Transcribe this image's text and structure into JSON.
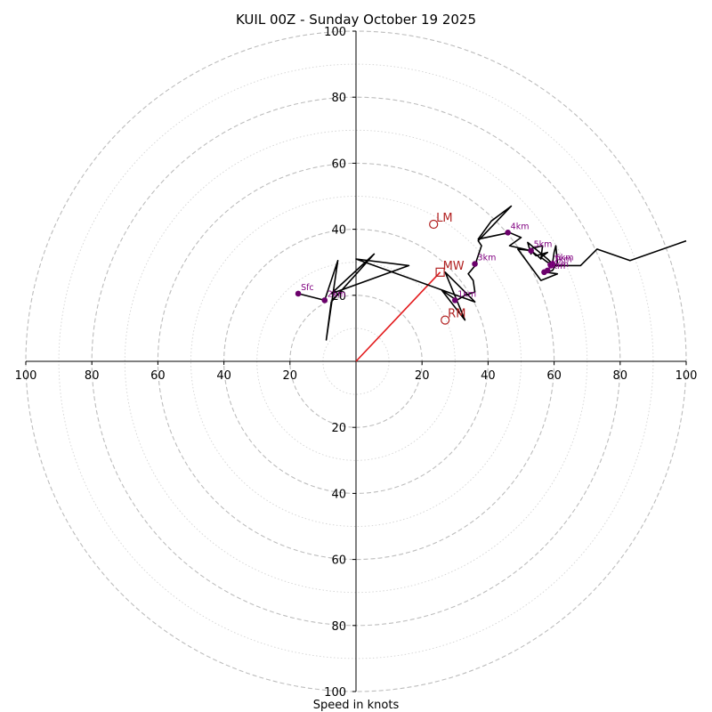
{
  "chart_data": {
    "type": "hodograph",
    "title": "KUIL 00Z - Sunday October 19 2025",
    "xlabel": "Speed in knots",
    "axis_range": [
      -100,
      100
    ],
    "rings_major": [
      20,
      40,
      60,
      80,
      100
    ],
    "rings_minor": [
      10,
      30,
      50,
      70,
      90
    ],
    "x_ticks": [
      -100,
      -80,
      -60,
      -40,
      -20,
      20,
      40,
      60,
      80,
      100
    ],
    "x_tick_labels": [
      "100",
      "80",
      "60",
      "40",
      "20",
      "20",
      "40",
      "60",
      "80",
      "100"
    ],
    "y_ticks": [
      100,
      80,
      60,
      40,
      20,
      -20,
      -40,
      -60,
      -80,
      -100
    ],
    "y_tick_labels": [
      "100",
      "80",
      "60",
      "40",
      "20",
      "20",
      "40",
      "60",
      "80",
      "100"
    ],
    "wind_trace": [
      [
        -17.5,
        20.5
      ],
      [
        -9.5,
        18.5
      ],
      [
        -5.5,
        30.5
      ],
      [
        -9,
        6.5
      ],
      [
        -7.5,
        18
      ],
      [
        5.5,
        32.5
      ],
      [
        -7.5,
        20.5
      ],
      [
        16,
        29
      ],
      [
        0,
        31
      ],
      [
        36,
        18
      ],
      [
        27,
        27
      ],
      [
        33,
        12.5
      ],
      [
        26,
        21.5
      ],
      [
        30.5,
        18.5
      ],
      [
        33,
        20
      ],
      [
        36,
        21
      ],
      [
        35.5,
        24.5
      ],
      [
        34,
        26.5
      ],
      [
        36.5,
        29.5
      ],
      [
        36.5,
        30.5
      ],
      [
        38,
        35
      ],
      [
        37,
        36.5
      ],
      [
        47,
        47
      ],
      [
        41,
        42.5
      ],
      [
        37,
        37
      ],
      [
        46.5,
        39
      ],
      [
        50,
        37.5
      ],
      [
        46.5,
        35
      ],
      [
        53,
        33.5
      ],
      [
        55,
        32
      ],
      [
        56,
        31
      ],
      [
        56.5,
        35
      ],
      [
        52.5,
        34
      ],
      [
        54.5,
        32
      ],
      [
        58,
        33
      ],
      [
        56,
        31.5
      ],
      [
        58,
        30
      ],
      [
        59.5,
        29.5
      ],
      [
        60,
        33
      ],
      [
        60.5,
        35
      ],
      [
        61,
        30
      ],
      [
        59.5,
        27.5
      ],
      [
        57.5,
        27
      ],
      [
        61,
        26.5
      ],
      [
        56,
        24.5
      ],
      [
        49,
        34
      ],
      [
        53.5,
        33.5
      ],
      [
        53,
        32.5
      ],
      [
        52,
        36
      ],
      [
        58,
        31
      ],
      [
        60,
        29
      ],
      [
        68,
        29
      ],
      [
        73,
        34
      ],
      [
        83,
        30.5
      ],
      [
        100,
        36.5
      ]
    ],
    "height_markers": [
      {
        "label": "Sfc",
        "u": -17.5,
        "v": 20.5
      },
      {
        "label": "2km",
        "u": -9.5,
        "v": 18.5
      },
      {
        "label": "1km",
        "u": 30,
        "v": 18.5
      },
      {
        "label": "3km",
        "u": 36,
        "v": 29.5
      },
      {
        "label": "4km",
        "u": 46,
        "v": 39
      },
      {
        "label": "5km",
        "u": 53,
        "v": 33.5
      },
      {
        "label": "6km",
        "u": 59.5,
        "v": 29.5
      },
      {
        "label": "7km",
        "u": 59,
        "v": 29
      },
      {
        "label": "8km",
        "u": 58,
        "v": 27.5
      },
      {
        "label": "9km",
        "u": 57,
        "v": 27
      }
    ],
    "storm_motion": [
      {
        "label": "LM",
        "u": 23.5,
        "v": 41.5,
        "marker": "circle"
      },
      {
        "label": "MW",
        "u": 25.5,
        "v": 27,
        "marker": "square"
      },
      {
        "label": "RM",
        "u": 27,
        "v": 12.5,
        "marker": "circle"
      }
    ],
    "mean_wind_line": {
      "u": 25.5,
      "v": 27
    },
    "colors": {
      "trace": "#000000",
      "height_marker": "#6b006b",
      "height_label": "#800080",
      "storm_motion": "#b22222",
      "mean_wind_line": "#e31a1c"
    }
  }
}
